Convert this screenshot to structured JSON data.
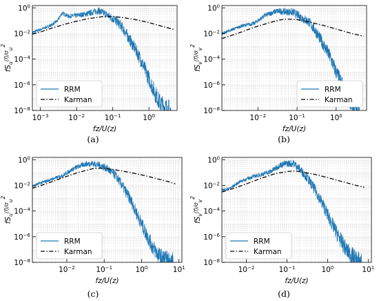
{
  "chart_data": [
    {
      "type": "line",
      "panel": "(a)",
      "caption": "(a)",
      "xscale": "log",
      "yscale": "log",
      "xlim": [
        0.0006,
        6
      ],
      "ylim": [
        1e-08,
        1.5
      ],
      "x_ticks": [
        0.001,
        0.01,
        0.1,
        1
      ],
      "x_tick_labels": [
        "10^-3",
        "10^-2",
        "10^-1",
        "10^0"
      ],
      "y_ticks": [
        1e-08,
        1e-06,
        0.0001,
        0.01,
        1
      ],
      "y_tick_labels": [
        "10^-8",
        "10^-6",
        "10^-4",
        "10^-2",
        "10^0"
      ],
      "xlabel": "fz/U(z)",
      "ylabel": "fS_u(f)/σ_u^2",
      "grid": true,
      "legend": "bottom-left",
      "series": [
        {
          "name": "RRM",
          "color": "#1f77b4",
          "style": "solid",
          "x": [
            0.0006,
            0.001,
            0.002,
            0.003,
            0.004,
            0.006,
            0.01,
            0.02,
            0.04,
            0.06,
            0.1,
            0.15,
            0.2,
            0.3,
            0.5,
            0.7,
            1.0,
            1.5,
            2.0,
            3.0,
            4.0
          ],
          "y": [
            0.012,
            0.02,
            0.045,
            0.1,
            0.4,
            0.22,
            0.25,
            0.35,
            0.6,
            0.35,
            0.15,
            0.06,
            0.02,
            0.003,
            0.00025,
            3e-05,
            3e-06,
            2e-07,
            4e-08,
            1.5e-08,
            1e-08
          ]
        },
        {
          "name": "Karman",
          "color": "#000000",
          "style": "dashdot",
          "x": [
            0.0006,
            0.001,
            0.002,
            0.005,
            0.01,
            0.02,
            0.05,
            0.08,
            0.12,
            0.2,
            0.5,
            1.0,
            2.0,
            5.0
          ],
          "y": [
            0.009,
            0.013,
            0.025,
            0.055,
            0.09,
            0.14,
            0.2,
            0.21,
            0.2,
            0.17,
            0.11,
            0.07,
            0.04,
            0.02
          ]
        }
      ]
    },
    {
      "type": "line",
      "panel": "(b)",
      "caption": "(b)",
      "xscale": "log",
      "yscale": "log",
      "xlim": [
        0.0012,
        6
      ],
      "ylim": [
        1e-08,
        1.5
      ],
      "x_ticks": [
        0.01,
        0.1,
        1
      ],
      "x_tick_labels": [
        "10^-2",
        "10^-1",
        "10^0"
      ],
      "y_ticks": [
        1e-08,
        1e-06,
        0.0001,
        0.01,
        1
      ],
      "y_tick_labels": [
        "10^-8",
        "10^-6",
        "10^-4",
        "10^-2",
        "10^0"
      ],
      "xlabel": "fz/U(z)",
      "ylabel": "fS_v(f)/σ_v^2",
      "grid": true,
      "legend": "bottom-right",
      "series": [
        {
          "name": "RRM",
          "color": "#1f77b4",
          "style": "solid",
          "x": [
            0.0012,
            0.002,
            0.004,
            0.008,
            0.015,
            0.03,
            0.05,
            0.08,
            0.12,
            0.2,
            0.3,
            0.5,
            0.7,
            1.0,
            1.5,
            2.0,
            3.0,
            4.0
          ],
          "y": [
            0.01,
            0.018,
            0.04,
            0.06,
            0.25,
            0.55,
            0.5,
            0.45,
            0.2,
            0.08,
            0.015,
            0.001,
            0.00015,
            1e-05,
            7e-07,
            1e-07,
            2e-08,
            1e-08
          ]
        },
        {
          "name": "Karman",
          "color": "#000000",
          "style": "dashdot",
          "x": [
            0.0012,
            0.003,
            0.008,
            0.02,
            0.04,
            0.06,
            0.1,
            0.2,
            0.5,
            1.0,
            2.0,
            5.0
          ],
          "y": [
            0.004,
            0.01,
            0.03,
            0.07,
            0.12,
            0.13,
            0.12,
            0.08,
            0.04,
            0.022,
            0.012,
            0.006
          ]
        }
      ]
    },
    {
      "type": "line",
      "panel": "(c)",
      "caption": "(c)",
      "xscale": "log",
      "yscale": "log",
      "xlim": [
        0.0012,
        12
      ],
      "ylim": [
        1e-08,
        1.5
      ],
      "x_ticks": [
        0.01,
        0.1,
        1,
        10
      ],
      "x_tick_labels": [
        "10^-2",
        "10^-1",
        "10^0",
        "10^1"
      ],
      "y_ticks": [
        1e-08,
        1e-06,
        0.0001,
        0.01,
        1
      ],
      "y_tick_labels": [
        "10^-8",
        "10^-6",
        "10^-4",
        "10^-2",
        "10^0"
      ],
      "xlabel": "fz/U(z)",
      "ylabel": "fS_u(f)/σ_u^2",
      "grid": true,
      "legend": "bottom-left",
      "series": [
        {
          "name": "RRM",
          "color": "#1f77b4",
          "style": "solid",
          "x": [
            0.0012,
            0.002,
            0.004,
            0.008,
            0.015,
            0.03,
            0.05,
            0.08,
            0.12,
            0.2,
            0.3,
            0.5,
            0.8,
            1.2,
            2.0,
            3.0,
            5.0,
            7.0
          ],
          "y": [
            0.009,
            0.015,
            0.03,
            0.06,
            0.2,
            0.45,
            0.5,
            0.35,
            0.2,
            0.06,
            0.01,
            0.0008,
            4e-05,
            3e-06,
            1.5e-07,
            3e-08,
            1.2e-08,
            1e-08
          ]
        },
        {
          "name": "Karman",
          "color": "#000000",
          "style": "dashdot",
          "x": [
            0.0012,
            0.003,
            0.008,
            0.02,
            0.05,
            0.08,
            0.12,
            0.2,
            0.5,
            1.0,
            2.0,
            5.0,
            8.0
          ],
          "y": [
            0.006,
            0.014,
            0.04,
            0.1,
            0.2,
            0.22,
            0.2,
            0.16,
            0.1,
            0.065,
            0.04,
            0.02,
            0.013
          ]
        }
      ]
    },
    {
      "type": "line",
      "panel": "(d)",
      "caption": "(d)",
      "xscale": "log",
      "yscale": "log",
      "xlim": [
        0.0025,
        12
      ],
      "ylim": [
        1e-08,
        1.5
      ],
      "x_ticks": [
        0.01,
        0.1,
        1,
        10
      ],
      "x_tick_labels": [
        "10^-2",
        "10^-1",
        "10^0",
        "10^1"
      ],
      "y_ticks": [
        1e-08,
        1e-06,
        0.0001,
        0.01,
        1
      ],
      "y_tick_labels": [
        "10^-8",
        "10^-6",
        "10^-4",
        "10^-2",
        "10^0"
      ],
      "xlabel": "fz/U(z)",
      "ylabel": "fS_v(f)/σ_v^2",
      "grid": true,
      "legend": "bottom-left",
      "series": [
        {
          "name": "RRM",
          "color": "#1f77b4",
          "style": "solid",
          "x": [
            0.0025,
            0.004,
            0.007,
            0.01,
            0.015,
            0.02,
            0.04,
            0.07,
            0.1,
            0.15,
            0.2,
            0.3,
            0.5,
            0.8,
            1.2,
            2.0,
            3.0,
            5.0,
            7.0
          ],
          "y": [
            0.004,
            0.006,
            0.02,
            0.03,
            0.05,
            0.06,
            0.12,
            0.4,
            0.5,
            0.5,
            0.2,
            0.05,
            0.004,
            0.00025,
            1.5e-05,
            7e-07,
            8e-08,
            1.5e-08,
            1e-08
          ]
        },
        {
          "name": "Karman",
          "color": "#000000",
          "style": "dashdot",
          "x": [
            0.0025,
            0.005,
            0.01,
            0.02,
            0.05,
            0.1,
            0.15,
            0.2,
            0.5,
            1.0,
            2.0,
            5.0,
            8.0
          ],
          "y": [
            0.003,
            0.006,
            0.013,
            0.03,
            0.08,
            0.12,
            0.13,
            0.12,
            0.07,
            0.04,
            0.022,
            0.01,
            0.007
          ]
        }
      ]
    }
  ]
}
